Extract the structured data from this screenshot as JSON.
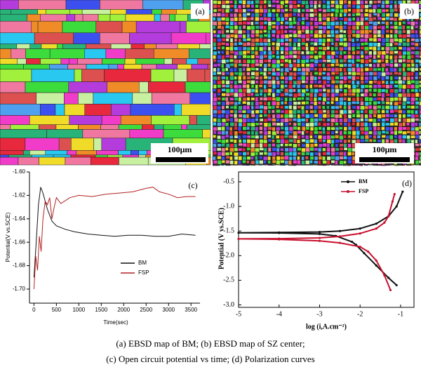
{
  "images": [
    {
      "panel_label": "(a)",
      "scale_bar": "100μm"
    },
    {
      "panel_label": "(b)",
      "scale_bar": "100μm"
    }
  ],
  "chart_data": [
    {
      "type": "line",
      "panel_label": "(c)",
      "xlabel": "Time(sec)",
      "ylabel": "Potential(V vs.SCE)",
      "xlim": [
        -100,
        3700
      ],
      "ylim": [
        -1.712,
        -1.6
      ],
      "xticks": [
        0,
        500,
        1000,
        1500,
        2000,
        2500,
        3000,
        3500
      ],
      "yticks": [
        {
          "value": -1.7,
          "label": "-1.70"
        },
        {
          "value": -1.68,
          "label": "-1.68"
        },
        {
          "value": -1.66,
          "label": "-1.66"
        },
        {
          "value": -1.64,
          "label": "-1.64"
        },
        {
          "value": -1.62,
          "label": "-1.62"
        },
        {
          "value": -1.6,
          "label": "-1.60"
        }
      ],
      "series": [
        {
          "name": "BM",
          "color": "#111111",
          "x": [
            0,
            50,
            100,
            150,
            200,
            300,
            400,
            500,
            700,
            900,
            1200,
            1500,
            1800,
            2100,
            2400,
            2700,
            3000,
            3300,
            3600
          ],
          "values": [
            -1.69,
            -1.66,
            -1.628,
            -1.613,
            -1.618,
            -1.632,
            -1.642,
            -1.646,
            -1.649,
            -1.651,
            -1.653,
            -1.654,
            -1.655,
            -1.654,
            -1.654,
            -1.655,
            -1.655,
            -1.653,
            -1.654
          ]
        },
        {
          "name": "FSP",
          "color": "#b22222",
          "x": [
            0,
            40,
            80,
            120,
            160,
            200,
            250,
            300,
            350,
            400,
            450,
            500,
            600,
            800,
            1000,
            1300,
            1600,
            1900,
            2200,
            2500,
            2650,
            2800,
            3000,
            3200,
            3400,
            3600
          ],
          "values": [
            -1.7,
            -1.672,
            -1.684,
            -1.655,
            -1.668,
            -1.64,
            -1.625,
            -1.628,
            -1.622,
            -1.64,
            -1.63,
            -1.622,
            -1.627,
            -1.622,
            -1.62,
            -1.621,
            -1.619,
            -1.618,
            -1.617,
            -1.614,
            -1.613,
            -1.617,
            -1.619,
            -1.622,
            -1.621,
            -1.621
          ]
        }
      ]
    },
    {
      "type": "line",
      "panel_label": "(d)",
      "xlabel": "log (i,A.cm⁻²)",
      "ylabel": "Potential (V vs.SCE)",
      "markers": true,
      "xlim": [
        -5,
        -0.67
      ],
      "ylim": [
        -3.05,
        -0.3
      ],
      "xticks": [
        -5,
        -4,
        -3,
        -2,
        -1
      ],
      "yticks": [
        {
          "value": -3.0,
          "label": "-3.0"
        },
        -2.5,
        {
          "value": -2.0,
          "label": "-2.0"
        },
        -1.5,
        {
          "value": -1.0,
          "label": "-1.0"
        },
        -0.5
      ],
      "series": [
        {
          "name": "BM",
          "color": "#111111",
          "x": [
            -1.1,
            -1.3,
            -1.6,
            -1.9,
            -2.1,
            -2.2,
            -2.6,
            -3.0,
            -4.0,
            -5.0,
            -4.0,
            -3.0,
            -2.5,
            -2.0,
            -1.6,
            -1.3,
            -1.1,
            -0.95
          ],
          "values": [
            -2.6,
            -2.45,
            -2.2,
            -1.95,
            -1.78,
            -1.72,
            -1.6,
            -1.56,
            -1.54,
            -1.535,
            -1.53,
            -1.52,
            -1.5,
            -1.45,
            -1.35,
            -1.2,
            -1.0,
            -0.7
          ]
        },
        {
          "name": "FSP",
          "color": "#c8102e",
          "x": [
            -1.25,
            -1.4,
            -1.6,
            -1.8,
            -2.0,
            -2.5,
            -3.0,
            -4.0,
            -5.0,
            -4.0,
            -3.0,
            -2.5,
            -2.0,
            -1.6,
            -1.4,
            -1.3,
            -1.2,
            -1.15
          ],
          "values": [
            -2.7,
            -2.4,
            -2.1,
            -1.92,
            -1.82,
            -1.74,
            -1.7,
            -1.67,
            -1.66,
            -1.655,
            -1.64,
            -1.61,
            -1.55,
            -1.45,
            -1.33,
            -1.2,
            -0.9,
            -0.75
          ]
        }
      ]
    }
  ],
  "caption": [
    "(a) EBSD map of BM; (b) EBSD map of SZ center;",
    "(c) Open circuit potential vs time; (d) Polarization curves"
  ]
}
